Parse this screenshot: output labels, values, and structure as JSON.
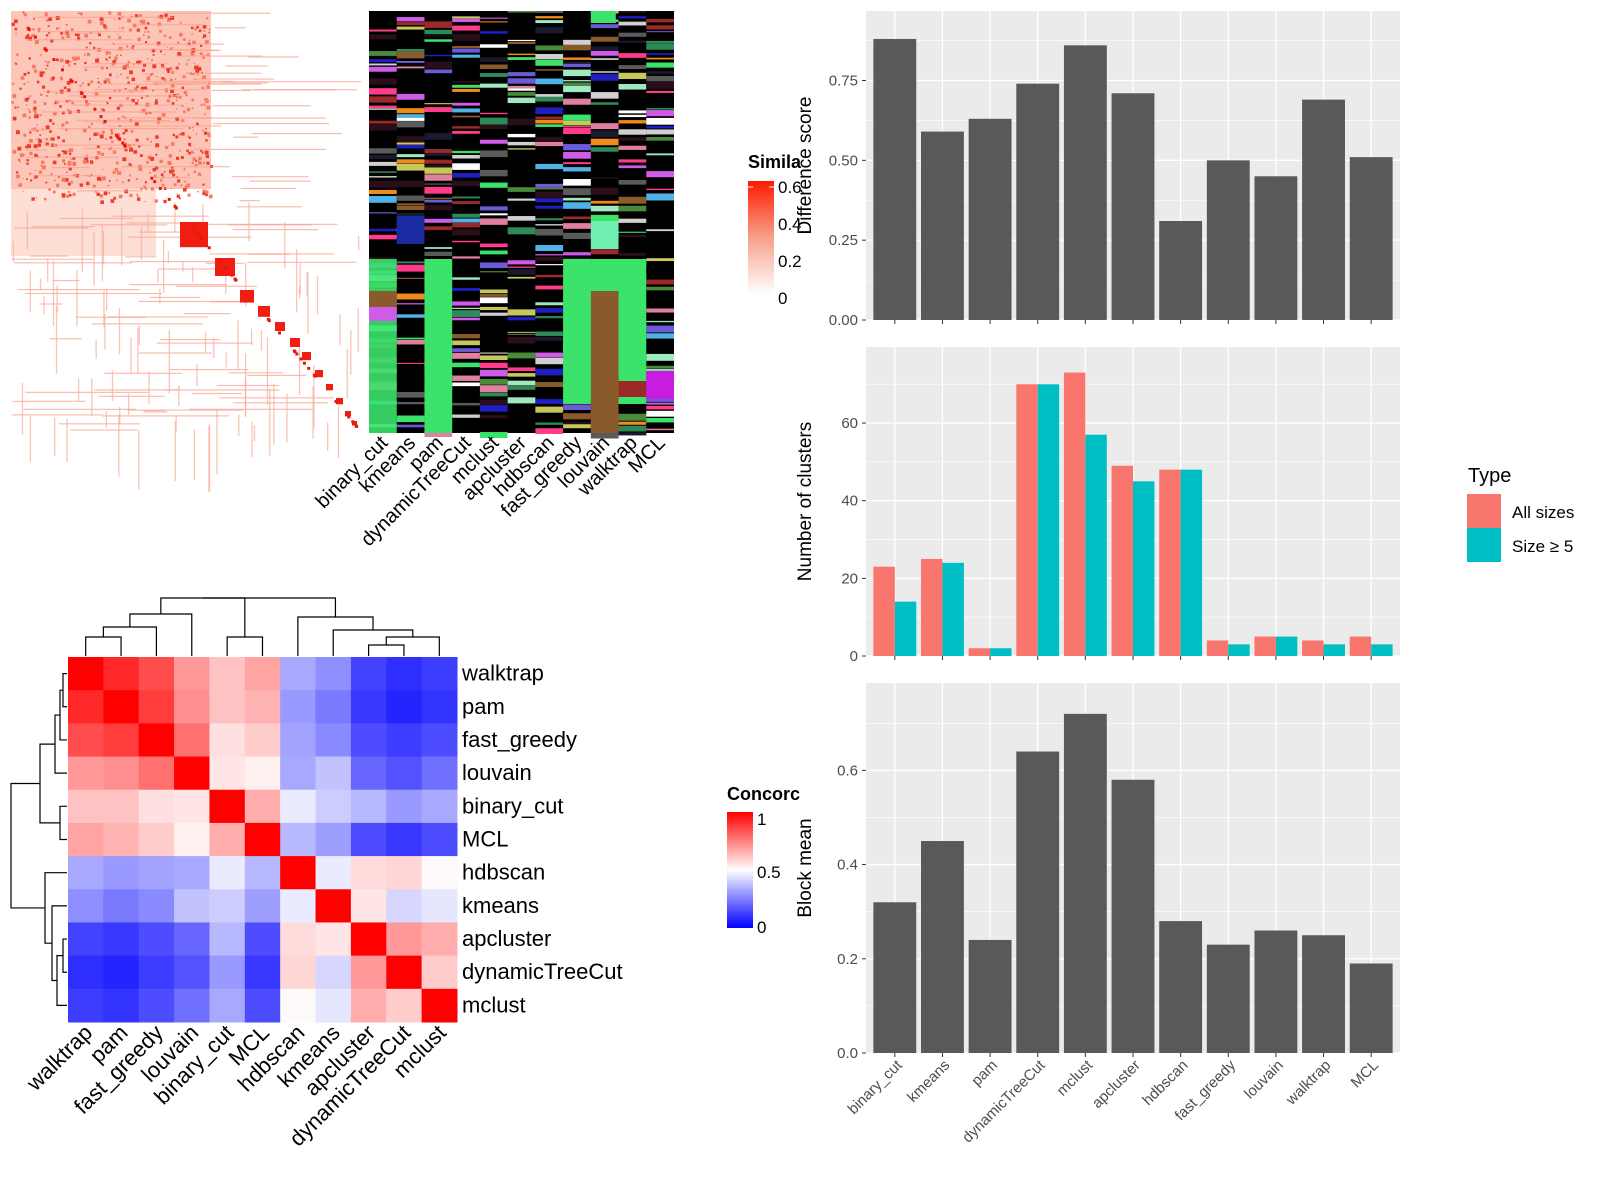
{
  "similarity_panel": {
    "legend_title": "Simila",
    "legend_ticks": [
      "0.6",
      "0.4",
      "0.2",
      "0"
    ],
    "method_labels": [
      "binary_cut",
      "kmeans",
      "pam",
      "dynamicTreeCut",
      "mclust",
      "apcluster",
      "hdbscan",
      "fast_greedy",
      "louvain",
      "walktrap",
      "MCL"
    ]
  },
  "concordance_panel": {
    "legend_title": "Concorc",
    "legend_ticks": [
      "1",
      "0.5",
      "0"
    ],
    "rows": [
      "walktrap",
      "pam",
      "fast_greedy",
      "louvain",
      "binary_cut",
      "MCL",
      "hdbscan",
      "kmeans",
      "apcluster",
      "dynamicTreeCut",
      "mclust"
    ]
  },
  "legend_type": {
    "title": "Type",
    "entries": [
      {
        "label": "All sizes",
        "color": "#F8766D"
      },
      {
        "label": "Size ≥ 5",
        "color": "#00BFC4"
      }
    ]
  },
  "chart_data": [
    {
      "type": "heatmap",
      "rows": [
        "walktrap",
        "pam",
        "fast_greedy",
        "louvain",
        "binary_cut",
        "MCL",
        "hdbscan",
        "kmeans",
        "apcluster",
        "dynamicTreeCut",
        "mclust"
      ],
      "columns": [
        "walktrap",
        "pam",
        "fast_greedy",
        "louvain",
        "binary_cut",
        "MCL",
        "hdbscan",
        "kmeans",
        "apcluster",
        "dynamicTreeCut",
        "mclust"
      ],
      "values": [
        [
          1.0,
          0.92,
          0.85,
          0.7,
          0.62,
          0.68,
          0.33,
          0.28,
          0.13,
          0.09,
          0.12
        ],
        [
          0.92,
          1.0,
          0.88,
          0.72,
          0.62,
          0.65,
          0.3,
          0.24,
          0.11,
          0.07,
          0.1
        ],
        [
          0.85,
          0.88,
          1.0,
          0.78,
          0.56,
          0.6,
          0.32,
          0.27,
          0.15,
          0.12,
          0.15
        ],
        [
          0.7,
          0.72,
          0.78,
          1.0,
          0.55,
          0.53,
          0.33,
          0.38,
          0.2,
          0.16,
          0.22
        ],
        [
          0.62,
          0.62,
          0.56,
          0.55,
          1.0,
          0.66,
          0.46,
          0.4,
          0.36,
          0.3,
          0.33
        ],
        [
          0.68,
          0.65,
          0.6,
          0.53,
          0.66,
          1.0,
          0.36,
          0.31,
          0.15,
          0.11,
          0.15
        ],
        [
          0.33,
          0.3,
          0.32,
          0.33,
          0.46,
          0.36,
          1.0,
          0.46,
          0.57,
          0.58,
          0.51
        ],
        [
          0.28,
          0.24,
          0.27,
          0.38,
          0.4,
          0.31,
          0.46,
          1.0,
          0.55,
          0.42,
          0.45
        ],
        [
          0.13,
          0.11,
          0.15,
          0.2,
          0.36,
          0.15,
          0.57,
          0.55,
          1.0,
          0.7,
          0.66
        ],
        [
          0.09,
          0.07,
          0.12,
          0.16,
          0.3,
          0.11,
          0.58,
          0.42,
          0.7,
          1.0,
          0.6
        ],
        [
          0.12,
          0.1,
          0.15,
          0.22,
          0.33,
          0.15,
          0.51,
          0.45,
          0.66,
          0.6,
          1.0
        ]
      ],
      "legend_title": "Concorc",
      "color_scale": [
        "#0000FF",
        "#FFFFFF",
        "#FF0000"
      ],
      "range": [
        0,
        1
      ]
    },
    {
      "type": "bar",
      "categories": [
        "binary_cut",
        "kmeans",
        "pam",
        "dynamicTreeCut",
        "mclust",
        "apcluster",
        "hdbscan",
        "fast_greedy",
        "louvain",
        "walktrap",
        "MCL"
      ],
      "values": [
        0.88,
        0.59,
        0.63,
        0.74,
        0.86,
        0.71,
        0.31,
        0.5,
        0.45,
        0.69,
        0.51
      ],
      "ylabel": "Difference score",
      "ylim": [
        0,
        0.93
      ],
      "yticks": [
        "0.00",
        "0.25",
        "0.50",
        "0.75"
      ],
      "bar_color": "#595959"
    },
    {
      "type": "bar",
      "categories": [
        "binary_cut",
        "kmeans",
        "pam",
        "dynamicTreeCut",
        "mclust",
        "apcluster",
        "hdbscan",
        "fast_greedy",
        "louvain",
        "walktrap",
        "MCL"
      ],
      "series": [
        {
          "name": "All sizes",
          "values": [
            23,
            25,
            2,
            70,
            73,
            49,
            48,
            4,
            5,
            4,
            5
          ]
        },
        {
          "name": "Size ≥ 5",
          "values": [
            14,
            24,
            2,
            70,
            57,
            45,
            48,
            3,
            5,
            3,
            3
          ]
        }
      ],
      "ylabel": "Number of clusters",
      "ylim": [
        0,
        76.5
      ],
      "yticks": [
        "0",
        "20",
        "40",
        "60"
      ]
    },
    {
      "type": "bar",
      "categories": [
        "binary_cut",
        "kmeans",
        "pam",
        "dynamicTreeCut",
        "mclust",
        "apcluster",
        "hdbscan",
        "fast_greedy",
        "louvain",
        "walktrap",
        "MCL"
      ],
      "values": [
        0.32,
        0.45,
        0.24,
        0.64,
        0.72,
        0.58,
        0.28,
        0.23,
        0.26,
        0.25,
        0.19
      ],
      "ylabel": "Block mean",
      "ylim": [
        0,
        0.76
      ],
      "yticks": [
        "0.0",
        "0.2",
        "0.4",
        "0.6"
      ],
      "bar_color": "#595959"
    }
  ]
}
